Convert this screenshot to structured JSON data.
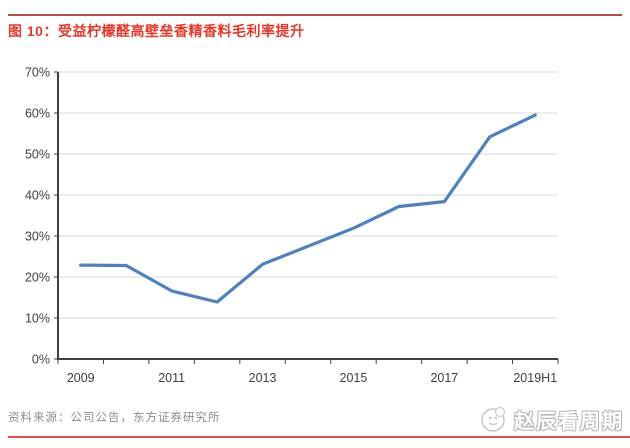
{
  "header": {
    "title": "图 10：受益柠檬醛高壁垒香精香料毛利率提升"
  },
  "chart_data": {
    "type": "line",
    "title": "受益柠檬醛高壁垒香精香料毛利率提升",
    "categories": [
      "2009",
      "2010",
      "2011",
      "2012",
      "2013",
      "2014",
      "2015",
      "2016",
      "2017",
      "2018",
      "2019H1"
    ],
    "values": [
      22.9,
      22.8,
      16.6,
      13.9,
      23.1,
      27.5,
      31.9,
      37.2,
      38.4,
      54.2,
      59.5
    ],
    "x_labels_shown": [
      "2009",
      "2011",
      "2013",
      "2015",
      "2017",
      "2019H1"
    ],
    "xlabel": "",
    "ylabel": "",
    "ylim": [
      0,
      70
    ],
    "ytick_step": 10,
    "ytick_suffix": "%",
    "grid": true,
    "legend": "none",
    "line_color": "#4F81BD",
    "grid_color": "#d9d9d9",
    "axis_color": "#404040",
    "tick_label_color": "#404040"
  },
  "footer": {
    "source": "资料来源：公司公告，东方证券研究所",
    "watermark": "赵辰看周期"
  },
  "colors": {
    "title_red": "#e13a2d",
    "top_rule": "#b25050",
    "bottom_rule": "#df5149"
  }
}
